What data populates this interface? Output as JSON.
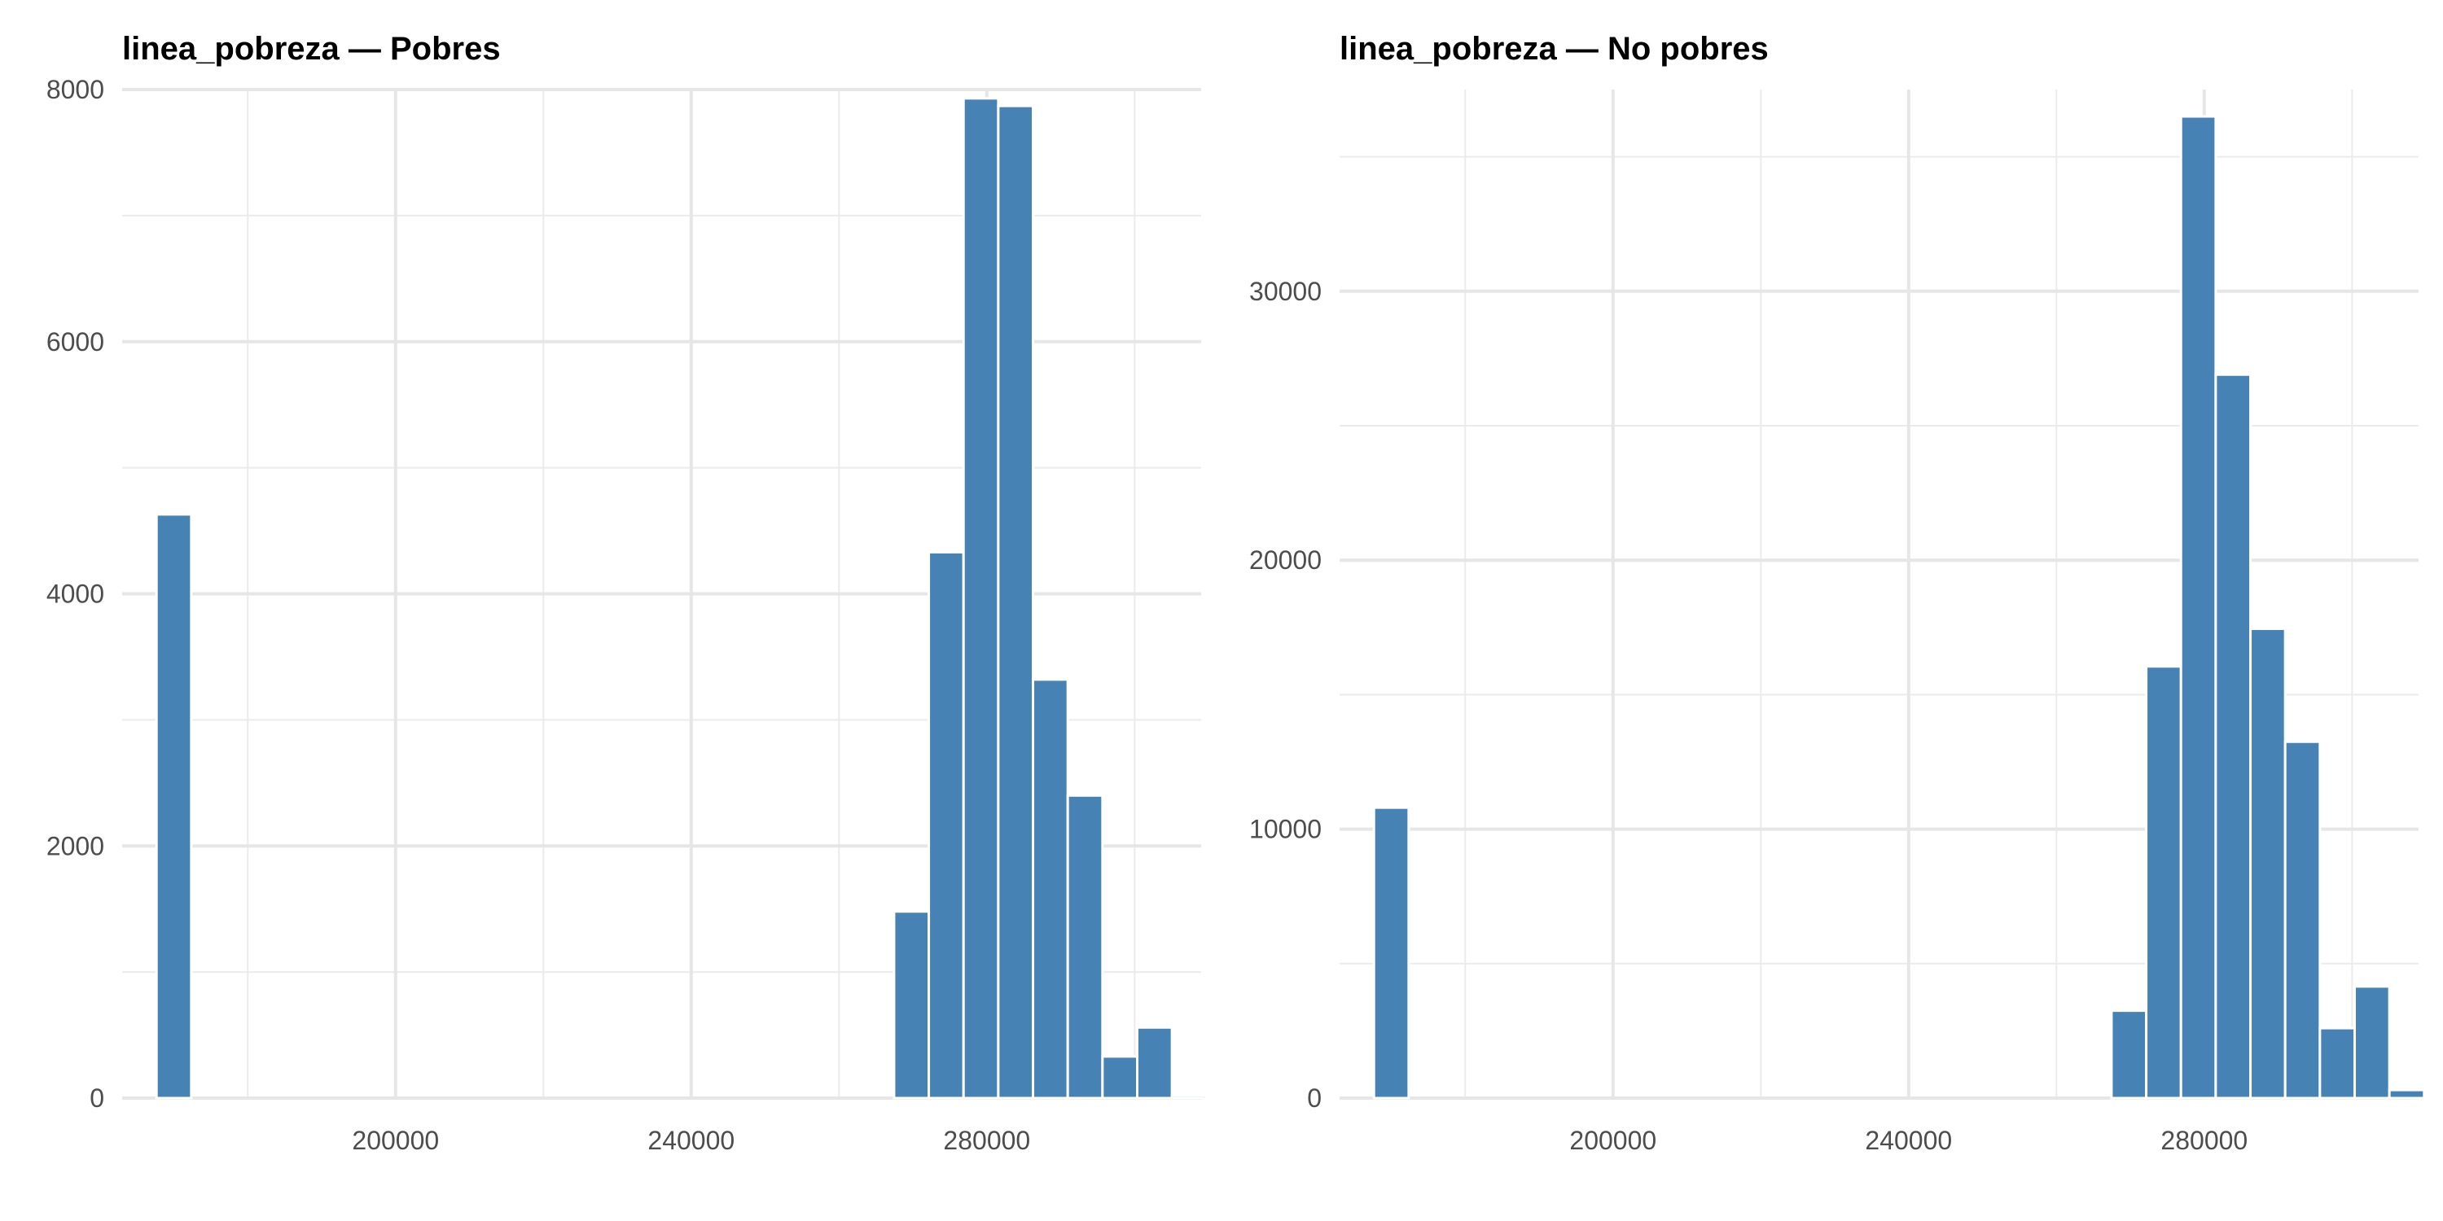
{
  "chart_data": [
    {
      "type": "bar",
      "title": "linea_pobreza — Pobres",
      "xlim": [
        163000,
        309000
      ],
      "ylim": [
        0,
        8000
      ],
      "x_ticks": [
        "200000",
        "240000",
        "280000"
      ],
      "x_tick_values": [
        200000,
        240000,
        280000
      ],
      "y_ticks": [
        "0",
        "2000",
        "4000",
        "6000",
        "8000"
      ],
      "y_tick_values": [
        0,
        2000,
        4000,
        6000,
        8000
      ],
      "bin_width": 4700,
      "bins": [
        {
          "x": 170000,
          "count": 4630
        },
        {
          "x": 269800,
          "count": 1480
        },
        {
          "x": 274500,
          "count": 4330
        },
        {
          "x": 279200,
          "count": 7930
        },
        {
          "x": 283900,
          "count": 7870
        },
        {
          "x": 288600,
          "count": 3320
        },
        {
          "x": 293300,
          "count": 2400
        },
        {
          "x": 298000,
          "count": 330
        },
        {
          "x": 302700,
          "count": 560
        },
        {
          "x": 307400,
          "count": 20
        }
      ],
      "grid": true,
      "bar_color": "#4682B4"
    },
    {
      "type": "bar",
      "title": "linea_pobreza — No pobres",
      "xlim": [
        163000,
        309000
      ],
      "ylim": [
        0,
        37500
      ],
      "x_ticks": [
        "200000",
        "240000",
        "280000"
      ],
      "x_tick_values": [
        200000,
        240000,
        280000
      ],
      "y_ticks": [
        "0",
        "10000",
        "20000",
        "30000"
      ],
      "y_tick_values": [
        0,
        10000,
        20000,
        30000
      ],
      "bin_width": 4700,
      "bins": [
        {
          "x": 170000,
          "count": 10800
        },
        {
          "x": 269800,
          "count": 3250
        },
        {
          "x": 274500,
          "count": 16050
        },
        {
          "x": 279200,
          "count": 36500
        },
        {
          "x": 283900,
          "count": 26900
        },
        {
          "x": 288600,
          "count": 17450
        },
        {
          "x": 293300,
          "count": 13250
        },
        {
          "x": 298000,
          "count": 2600
        },
        {
          "x": 302700,
          "count": 4150
        },
        {
          "x": 307400,
          "count": 300
        }
      ],
      "grid": true,
      "bar_color": "#4682B4"
    }
  ]
}
